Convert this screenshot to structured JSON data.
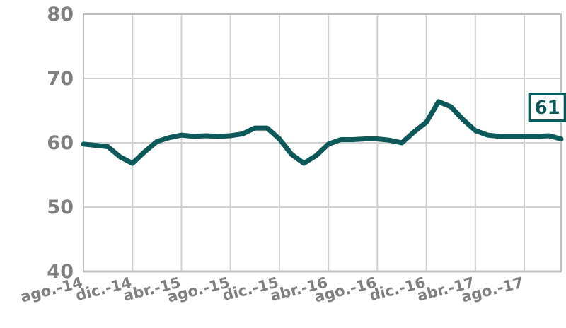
{
  "chart_data": {
    "type": "line",
    "xlabel": "",
    "ylabel": "",
    "ylim": [
      40,
      80
    ],
    "yticks": [
      40,
      50,
      60,
      70,
      80
    ],
    "grid": true,
    "legend": "none",
    "x_tick_labels": [
      "ago.-14",
      "dic.-14",
      "abr.-15",
      "ago.-15",
      "dic.-15",
      "abr.-16",
      "ago.-16",
      "dic.-16",
      "abr.-17",
      "ago.-17"
    ],
    "x": [
      "ago.-14",
      "sep.-14",
      "oct.-14",
      "nov.-14",
      "dic.-14",
      "ene.-15",
      "feb.-15",
      "mar.-15",
      "abr.-15",
      "may.-15",
      "jun.-15",
      "jul.-15",
      "ago.-15",
      "sep.-15",
      "oct.-15",
      "nov.-15",
      "dic.-15",
      "ene.-16",
      "feb.-16",
      "mar.-16",
      "abr.-16",
      "may.-16",
      "jun.-16",
      "jul.-16",
      "ago.-16",
      "sep.-16",
      "oct.-16",
      "nov.-16",
      "dic.-16",
      "ene.-17",
      "feb.-17",
      "mar.-17",
      "abr.-17",
      "may.-17",
      "jun.-17",
      "jul.-17",
      "ago.-17",
      "sep.-17",
      "oct.-17",
      "nov.-17"
    ],
    "series": [
      {
        "values": [
          59.8,
          59.6,
          59.4,
          57.8,
          56.8,
          58.6,
          60.2,
          60.8,
          61.2,
          61.0,
          61.1,
          61.0,
          61.1,
          61.4,
          62.3,
          62.3,
          60.6,
          58.2,
          56.8,
          58.0,
          59.8,
          60.5,
          60.5,
          60.6,
          60.6,
          60.4,
          60.0,
          61.7,
          63.2,
          66.4,
          65.6,
          63.6,
          61.9,
          61.2,
          61.0,
          61.0,
          61.0,
          61.0,
          61.1,
          60.6
        ],
        "color": "#0d5858"
      }
    ],
    "annotations": [
      {
        "text": "61",
        "x": "oct.-17",
        "color": "#0d5858"
      }
    ],
    "colors": {
      "line": "#0d5858",
      "grid": "#d0d0d0",
      "frame": "#bfbfbf",
      "tick_text": "#7f7f7f"
    }
  }
}
